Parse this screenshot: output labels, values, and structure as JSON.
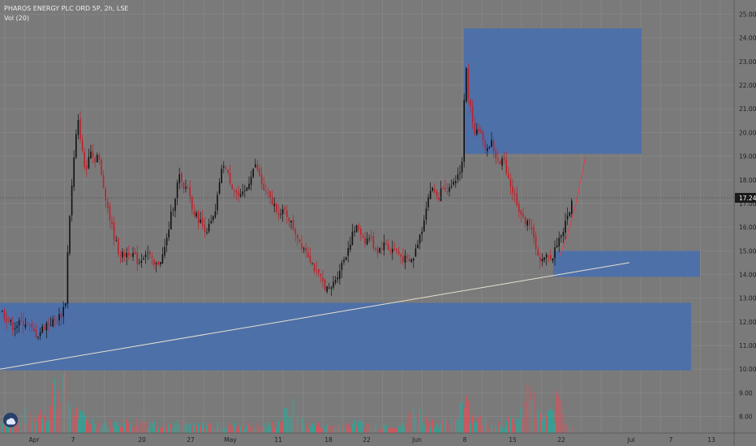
{
  "header": {
    "symbol_line": "PHAROS ENERGY PLC ORD 5P, 2h, LSE",
    "volume_label": "Vol (20)"
  },
  "colors": {
    "background": "#7a7a7a",
    "grid": "#8a8a8a",
    "zone_fill": "#4a6fab",
    "up_candle": "#111111",
    "down_candle": "#c0202a",
    "trendline": "#e6e2cf",
    "vol_up": "#2aa89a",
    "vol_down": "#e0505a",
    "price_tag": "#1a1a1a"
  },
  "chart_data": {
    "type": "candlestick",
    "price_axis": {
      "ylim": [
        7.3,
        25.6
      ],
      "ticks": [
        "25.00",
        "24.00",
        "23.00",
        "22.00",
        "21.00",
        "20.00",
        "19.00",
        "18.00",
        "17.00",
        "16.00",
        "15.00",
        "14.00",
        "13.00",
        "12.00",
        "11.00",
        "10.00",
        "9.00",
        "8.00"
      ],
      "last_price": "17.24"
    },
    "time_axis": {
      "labels": [
        "Apr",
        "7",
        "20",
        "27",
        "May",
        "11",
        "18",
        "22",
        "Jun",
        "8",
        "15",
        "22",
        "Jul",
        "7",
        "13"
      ]
    },
    "price_path": [
      [
        0,
        12.5
      ],
      [
        15,
        11.8
      ],
      [
        30,
        12.0
      ],
      [
        45,
        11.4
      ],
      [
        55,
        11.9
      ],
      [
        65,
        12.0
      ],
      [
        75,
        12.3
      ],
      [
        80,
        12.9
      ],
      [
        84,
        16.0
      ],
      [
        88,
        17.8
      ],
      [
        92,
        19.6
      ],
      [
        96,
        20.5
      ],
      [
        100,
        19.3
      ],
      [
        105,
        18.2
      ],
      [
        110,
        19.5
      ],
      [
        115,
        18.8
      ],
      [
        120,
        19.1
      ],
      [
        125,
        18.0
      ],
      [
        130,
        17.2
      ],
      [
        135,
        16.3
      ],
      [
        140,
        15.6
      ],
      [
        145,
        15.0
      ],
      [
        150,
        14.8
      ],
      [
        160,
        15.0
      ],
      [
        170,
        14.5
      ],
      [
        180,
        15.0
      ],
      [
        190,
        14.3
      ],
      [
        200,
        14.8
      ],
      [
        205,
        15.5
      ],
      [
        210,
        16.5
      ],
      [
        215,
        17.3
      ],
      [
        220,
        18.2
      ],
      [
        225,
        17.5
      ],
      [
        230,
        17.8
      ],
      [
        235,
        17.0
      ],
      [
        240,
        16.5
      ],
      [
        245,
        16.3
      ],
      [
        250,
        16.0
      ],
      [
        255,
        15.9
      ],
      [
        260,
        16.2
      ],
      [
        265,
        16.6
      ],
      [
        270,
        18.0
      ],
      [
        275,
        18.7
      ],
      [
        280,
        18.2
      ],
      [
        285,
        17.8
      ],
      [
        290,
        17.5
      ],
      [
        295,
        17.2
      ],
      [
        300,
        17.4
      ],
      [
        305,
        17.8
      ],
      [
        310,
        18.4
      ],
      [
        315,
        18.6
      ],
      [
        320,
        18.0
      ],
      [
        325,
        17.5
      ],
      [
        330,
        17.3
      ],
      [
        335,
        17.0
      ],
      [
        340,
        16.8
      ],
      [
        345,
        16.5
      ],
      [
        350,
        16.7
      ],
      [
        355,
        16.4
      ],
      [
        360,
        16.0
      ],
      [
        365,
        15.7
      ],
      [
        370,
        15.3
      ],
      [
        375,
        15.1
      ],
      [
        380,
        14.8
      ],
      [
        385,
        14.4
      ],
      [
        390,
        14.0
      ],
      [
        395,
        13.8
      ],
      [
        400,
        13.5
      ],
      [
        405,
        13.3
      ],
      [
        410,
        13.6
      ],
      [
        415,
        14.0
      ],
      [
        420,
        14.4
      ],
      [
        425,
        14.8
      ],
      [
        430,
        15.3
      ],
      [
        435,
        15.8
      ],
      [
        440,
        16.0
      ],
      [
        445,
        15.7
      ],
      [
        450,
        15.4
      ],
      [
        455,
        15.6
      ],
      [
        460,
        15.2
      ],
      [
        465,
        15.0
      ],
      [
        470,
        15.2
      ],
      [
        475,
        15.3
      ],
      [
        480,
        15.0
      ],
      [
        485,
        15.1
      ],
      [
        490,
        14.9
      ],
      [
        495,
        14.7
      ],
      [
        500,
        14.6
      ],
      [
        505,
        14.5
      ],
      [
        510,
        14.8
      ],
      [
        515,
        15.5
      ],
      [
        520,
        16.0
      ],
      [
        525,
        17.0
      ],
      [
        530,
        17.6
      ],
      [
        535,
        17.5
      ],
      [
        540,
        17.2
      ],
      [
        545,
        17.8
      ],
      [
        550,
        17.7
      ],
      [
        555,
        17.5
      ],
      [
        560,
        17.9
      ],
      [
        565,
        18.3
      ],
      [
        570,
        18.9
      ],
      [
        573,
        24.1
      ],
      [
        575,
        21.5
      ],
      [
        580,
        20.9
      ],
      [
        585,
        20.0
      ],
      [
        590,
        20.2
      ],
      [
        595,
        19.5
      ],
      [
        600,
        19.3
      ],
      [
        605,
        19.6
      ],
      [
        610,
        19.0
      ],
      [
        615,
        18.6
      ],
      [
        620,
        18.9
      ],
      [
        625,
        18.2
      ],
      [
        630,
        17.6
      ],
      [
        635,
        17.2
      ],
      [
        640,
        16.7
      ],
      [
        645,
        16.2
      ],
      [
        650,
        16.4
      ],
      [
        655,
        15.7
      ],
      [
        660,
        15.2
      ],
      [
        665,
        14.5
      ],
      [
        670,
        14.6
      ],
      [
        675,
        14.9
      ],
      [
        680,
        14.6
      ],
      [
        685,
        15.3
      ],
      [
        690,
        15.6
      ],
      [
        695,
        16.0
      ],
      [
        700,
        16.6
      ],
      [
        705,
        17.1
      ]
    ],
    "volume_path": [
      [
        0,
        0.8
      ],
      [
        10,
        1.2
      ],
      [
        20,
        0.6
      ],
      [
        30,
        1.5
      ],
      [
        40,
        1.0
      ],
      [
        50,
        2.0
      ],
      [
        60,
        1.4
      ],
      [
        65,
        4.2
      ],
      [
        70,
        3.0
      ],
      [
        75,
        5.0
      ],
      [
        80,
        3.5
      ],
      [
        85,
        2.5
      ],
      [
        90,
        2.0
      ],
      [
        95,
        1.6
      ],
      [
        100,
        1.3
      ],
      [
        110,
        1.0
      ],
      [
        120,
        0.9
      ],
      [
        140,
        0.8
      ],
      [
        160,
        0.9
      ],
      [
        180,
        1.0
      ],
      [
        200,
        0.7
      ],
      [
        220,
        0.8
      ],
      [
        240,
        0.6
      ],
      [
        260,
        0.7
      ],
      [
        280,
        0.6
      ],
      [
        300,
        0.7
      ],
      [
        320,
        0.6
      ],
      [
        340,
        0.8
      ],
      [
        350,
        1.5
      ],
      [
        360,
        2.1
      ],
      [
        370,
        1.0
      ],
      [
        380,
        0.7
      ],
      [
        400,
        0.6
      ],
      [
        420,
        0.7
      ],
      [
        440,
        0.8
      ],
      [
        460,
        0.6
      ],
      [
        480,
        0.7
      ],
      [
        500,
        0.6
      ],
      [
        510,
        2.4
      ],
      [
        520,
        1.2
      ],
      [
        540,
        0.8
      ],
      [
        560,
        1.0
      ],
      [
        565,
        2.2
      ],
      [
        573,
        4.0
      ],
      [
        580,
        1.4
      ],
      [
        600,
        0.9
      ],
      [
        620,
        0.8
      ],
      [
        640,
        1.2
      ],
      [
        648,
        2.5
      ],
      [
        652,
        4.5
      ],
      [
        656,
        2.8
      ],
      [
        660,
        1.5
      ],
      [
        670,
        1.3
      ],
      [
        680,
        1.6
      ],
      [
        684,
        1.8
      ],
      [
        690,
        3.8
      ],
      [
        695,
        1.2
      ],
      [
        700,
        0.9
      ],
      [
        705,
        0.6
      ]
    ],
    "zones": [
      {
        "price_top": 24.4,
        "price_bottom": 19.1,
        "from_x": 572,
        "to_x": 791
      },
      {
        "price_top": 15.0,
        "price_bottom": 13.9,
        "from_x": 682,
        "to_x": 863
      },
      {
        "price_top": 12.8,
        "price_bottom": 9.95,
        "from_x": 0,
        "to_x": 852
      }
    ],
    "trendline": {
      "x1": 0,
      "price1": 10.0,
      "x2": 776,
      "price2": 14.5
    },
    "projection": [
      [
        690,
        14.8
      ],
      [
        700,
        15.7
      ],
      [
        710,
        17.0
      ],
      [
        722,
        19.0
      ]
    ]
  }
}
